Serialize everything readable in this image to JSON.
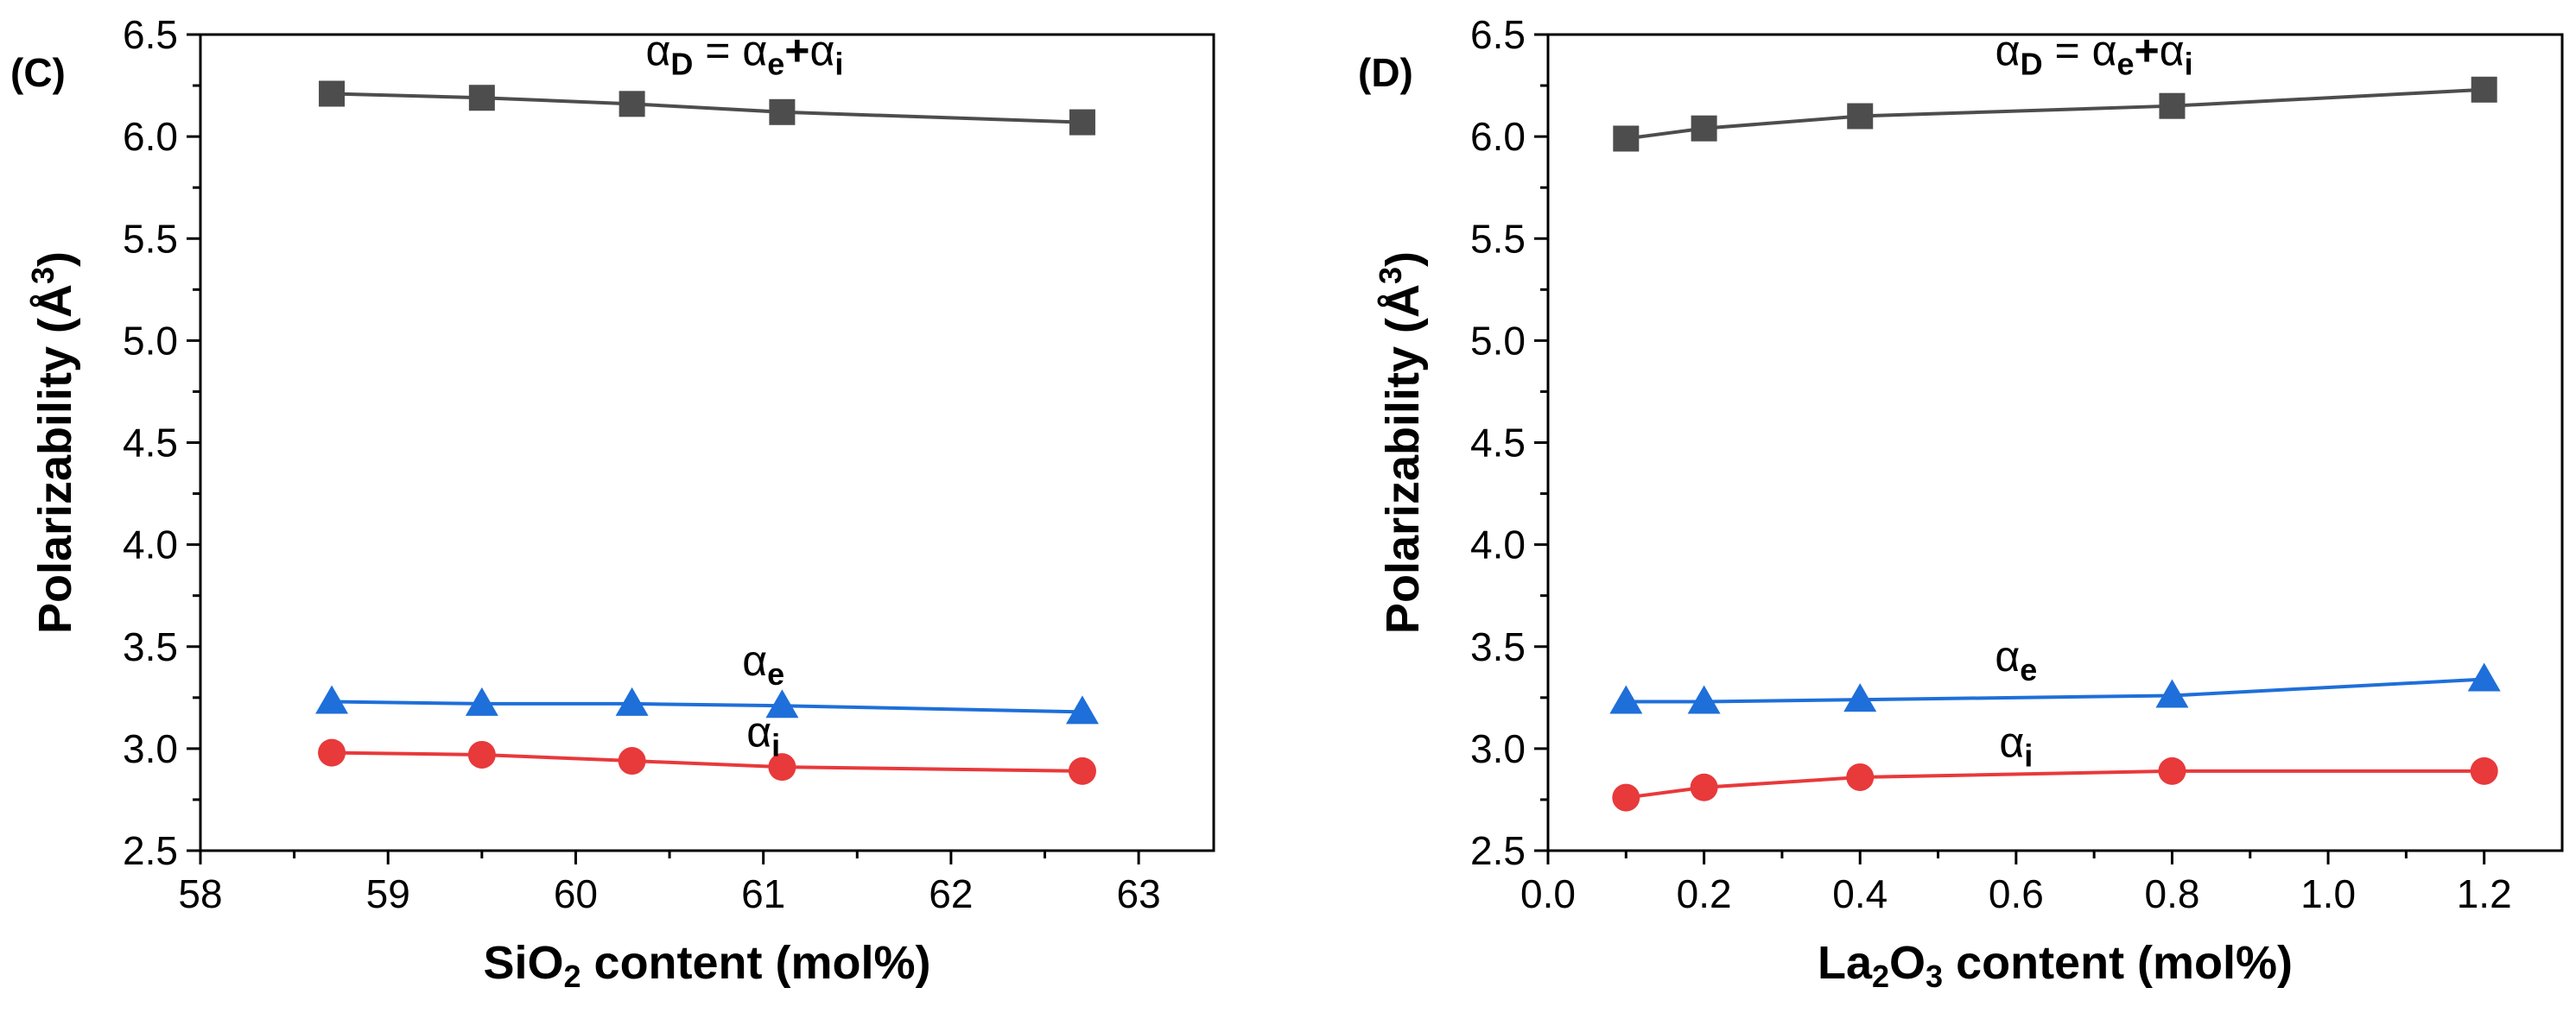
{
  "colors": {
    "total": "#4d4d4d",
    "electronic": "#1e6fd9",
    "ionic": "#e8393b",
    "axis": "#000000"
  },
  "chart_data": [
    {
      "type": "line",
      "panel_label": "(C)",
      "xlabel": {
        "pre": "SiO",
        "sub1": "2",
        "mid": "",
        "sub2": "",
        "post": " content (mol%)"
      },
      "ylabel": {
        "pre": "Polarizability (Å",
        "sup": "3",
        "post": ")"
      },
      "xlim": [
        58,
        63.4
      ],
      "ylim": [
        2.5,
        6.5
      ],
      "xticks": [
        58,
        59,
        60,
        61,
        62,
        63
      ],
      "xtick_labels": [
        "58",
        "59",
        "60",
        "61",
        "62",
        "63"
      ],
      "yticks": [
        2.5,
        3.0,
        3.5,
        4.0,
        4.5,
        5.0,
        5.5,
        6.0,
        6.5
      ],
      "ytick_labels": [
        "2.5",
        "3.0",
        "3.5",
        "4.0",
        "4.5",
        "5.0",
        "5.5",
        "6.0",
        "6.5"
      ],
      "x": [
        58.7,
        59.5,
        60.3,
        61.1,
        62.7
      ],
      "series": [
        {
          "name": "alpha_D",
          "marker": "square",
          "color": "#4d4d4d",
          "values": [
            6.21,
            6.19,
            6.16,
            6.12,
            6.07
          ]
        },
        {
          "name": "alpha_e",
          "marker": "triangle",
          "color": "#1e6fd9",
          "values": [
            3.23,
            3.22,
            3.22,
            3.21,
            3.18
          ]
        },
        {
          "name": "alpha_i",
          "marker": "circle",
          "color": "#e8393b",
          "values": [
            2.98,
            2.97,
            2.94,
            2.91,
            2.89
          ]
        }
      ],
      "annotations": [
        {
          "id": "total",
          "sym": "α",
          "sub": "D",
          "text": " = ",
          "sym2": "α",
          "sub2": "e",
          "plus": "+",
          "sym3": "α",
          "sub3": "i",
          "color": "#000000",
          "at": [
            60.9,
            6.35
          ]
        },
        {
          "id": "e",
          "sym": "α",
          "sub": "e",
          "color": "#000000",
          "at": [
            61.0,
            3.36
          ]
        },
        {
          "id": "i",
          "sym": "α",
          "sub": "i",
          "color": "#000000",
          "at": [
            61.0,
            3.01
          ]
        }
      ]
    },
    {
      "type": "line",
      "panel_label": "(D)",
      "xlabel": {
        "pre": "La",
        "sub1": "2",
        "mid": "O",
        "sub2": "3",
        "post": " content (mol%)"
      },
      "ylabel": {
        "pre": "Polarizability (Å",
        "sup": "3",
        "post": ")"
      },
      "xlim": [
        0.0,
        1.3
      ],
      "ylim": [
        2.5,
        6.5
      ],
      "xticks": [
        0.0,
        0.2,
        0.4,
        0.6,
        0.8,
        1.0,
        1.2
      ],
      "xtick_labels": [
        "0.0",
        "0.2",
        "0.4",
        "0.6",
        "0.8",
        "1.0",
        "1.2"
      ],
      "yticks": [
        2.5,
        3.0,
        3.5,
        4.0,
        4.5,
        5.0,
        5.5,
        6.0,
        6.5
      ],
      "ytick_labels": [
        "2.5",
        "3.0",
        "3.5",
        "4.0",
        "4.5",
        "5.0",
        "5.5",
        "6.0",
        "6.5"
      ],
      "x": [
        0.1,
        0.2,
        0.4,
        0.8,
        1.2
      ],
      "series": [
        {
          "name": "alpha_D",
          "marker": "square",
          "color": "#4d4d4d",
          "values": [
            5.99,
            6.04,
            6.1,
            6.15,
            6.23
          ]
        },
        {
          "name": "alpha_e",
          "marker": "triangle",
          "color": "#1e6fd9",
          "values": [
            3.23,
            3.23,
            3.24,
            3.26,
            3.34
          ]
        },
        {
          "name": "alpha_i",
          "marker": "circle",
          "color": "#e8393b",
          "values": [
            2.76,
            2.81,
            2.86,
            2.89,
            2.89
          ]
        }
      ],
      "annotations": [
        {
          "id": "total",
          "sym": "α",
          "sub": "D",
          "text": " = ",
          "sym2": "α",
          "sub2": "e",
          "plus": "+",
          "sym3": "α",
          "sub3": "i",
          "color": "#000000",
          "at": [
            0.7,
            6.35
          ]
        },
        {
          "id": "e",
          "sym": "α",
          "sub": "e",
          "color": "#000000",
          "at": [
            0.6,
            3.38
          ]
        },
        {
          "id": "i",
          "sym": "α",
          "sub": "i",
          "color": "#000000",
          "at": [
            0.6,
            2.96
          ]
        }
      ]
    }
  ]
}
